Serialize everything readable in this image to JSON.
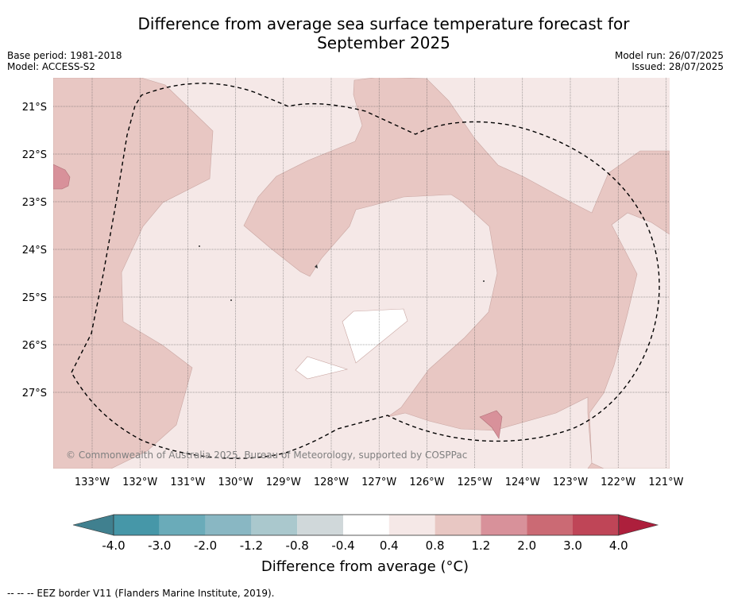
{
  "header": {
    "title_line1": "Difference from average sea surface temperature forecast for",
    "title_line2": "September 2025",
    "base_period": "Base period: 1981-2018",
    "model": "Model: ACCESS-S2",
    "model_run": "Model run: 26/07/2025",
    "issued": "Issued: 28/07/2025"
  },
  "map": {
    "lat_labels": [
      "21°S",
      "22°S",
      "23°S",
      "24°S",
      "25°S",
      "26°S",
      "27°S"
    ],
    "lon_labels": [
      "133°W",
      "132°W",
      "131°W",
      "130°W",
      "129°W",
      "128°W",
      "127°W",
      "126°W",
      "125°W",
      "124°W",
      "123°W",
      "122°W",
      "121°W"
    ],
    "copyright": "© Commonwealth of Australia 2025, Bureau of Meteorology, supported by COSPPac",
    "dominant_category": "0.4 to 0.8",
    "colors": {
      "c0408": "#f5e8e7",
      "c0812": "#e8c7c3",
      "c1220": "#d8919a",
      "cwhite": "#ffffff"
    }
  },
  "colorbar": {
    "ticks": [
      "-4.0",
      "-3.0",
      "-2.0",
      "-1.2",
      "-0.8",
      "-0.4",
      "0.4",
      "0.8",
      "1.2",
      "2.0",
      "3.0",
      "4.0"
    ],
    "colors": [
      "#4697a8",
      "#6aabb9",
      "#89b7c3",
      "#aac8cd",
      "#d0d8da",
      "#ffffff",
      "#f5e8e7",
      "#e8c7c3",
      "#d8919a",
      "#cb6a74",
      "#bf4557"
    ],
    "under_color": "#40808f",
    "over_color": "#ad1f3c",
    "label": "Difference from average (°C)"
  },
  "footer": {
    "eez_note": "--  --  -- EEZ border V11 (Flanders Marine Institute, 2019)."
  }
}
